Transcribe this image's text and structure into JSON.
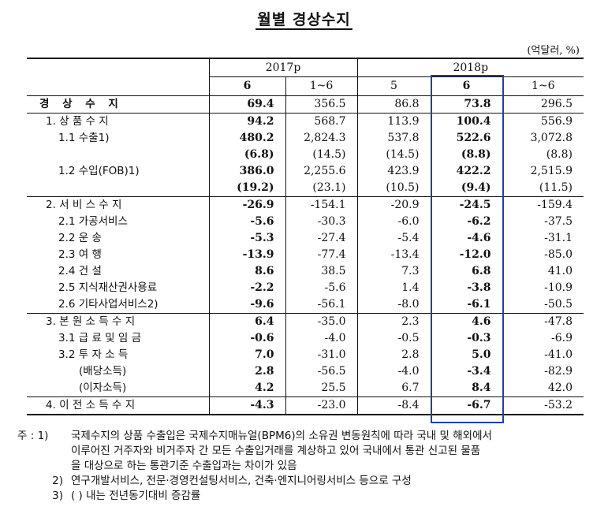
{
  "title": "월별 경상수지",
  "unit": "(억달러, %)",
  "header": {
    "year_2017": "2017p",
    "year_2018": "2018p",
    "cols": [
      "6",
      "1~6",
      "5",
      "6",
      "1~6"
    ]
  },
  "rows": [
    {
      "label": "경 상 수 지",
      "values": [
        "69.4",
        "356.5",
        "86.8",
        "73.8",
        "296.5"
      ],
      "bold": [
        true,
        false,
        false,
        true,
        false
      ]
    },
    {
      "label": "1. 상 품 수 지",
      "values": [
        "94.2",
        "568.7",
        "113.9",
        "100.4",
        "556.9"
      ],
      "bold": [
        true,
        false,
        false,
        true,
        false
      ]
    },
    {
      "label": "1.1 수출1)",
      "values": [
        "480.2",
        "2,824.3",
        "537.8",
        "522.6",
        "3,072.8"
      ],
      "bold": [
        true,
        false,
        false,
        true,
        false
      ]
    },
    {
      "label": "",
      "values": [
        "(6.8)",
        "(14.5)",
        "(14.5)",
        "(8.8)",
        "(8.8)"
      ],
      "bold": [
        true,
        false,
        false,
        true,
        false
      ]
    },
    {
      "label": "1.2 수입(FOB)1)",
      "values": [
        "386.0",
        "2,255.6",
        "423.9",
        "422.2",
        "2,515.9"
      ],
      "bold": [
        true,
        false,
        false,
        true,
        false
      ]
    },
    {
      "label": "",
      "values": [
        "(19.2)",
        "(23.1)",
        "(10.5)",
        "(9.4)",
        "(11.5)"
      ],
      "bold": [
        true,
        false,
        false,
        true,
        false
      ]
    },
    {
      "label": "2. 서 비 스 수 지",
      "values": [
        "-26.9",
        "-154.1",
        "-20.9",
        "-24.5",
        "-159.4"
      ],
      "bold": [
        true,
        false,
        false,
        true,
        false
      ]
    },
    {
      "label": "2.1 가공서비스",
      "values": [
        "-5.6",
        "-30.3",
        "-6.0",
        "-6.2",
        "-37.5"
      ],
      "bold": [
        true,
        false,
        false,
        true,
        false
      ]
    },
    {
      "label": "2.2 운        송",
      "values": [
        "-5.3",
        "-27.4",
        "-5.4",
        "-4.6",
        "-31.1"
      ],
      "bold": [
        true,
        false,
        false,
        true,
        false
      ]
    },
    {
      "label": "2.3 여        행",
      "values": [
        "-13.9",
        "-77.4",
        "-13.4",
        "-12.0",
        "-85.0"
      ],
      "bold": [
        true,
        false,
        false,
        true,
        false
      ]
    },
    {
      "label": "2.4 건        설",
      "values": [
        "8.6",
        "38.5",
        "7.3",
        "6.8",
        "41.0"
      ],
      "bold": [
        true,
        false,
        false,
        true,
        false
      ]
    },
    {
      "label": "2.5 지식재산권사용료",
      "values": [
        "-2.2",
        "-5.6",
        "1.4",
        "-3.8",
        "-10.9"
      ],
      "bold": [
        true,
        false,
        false,
        true,
        false
      ]
    },
    {
      "label": "2.6 기타사업서비스2)",
      "values": [
        "-9.6",
        "-56.1",
        "-8.0",
        "-6.1",
        "-50.5"
      ],
      "bold": [
        true,
        false,
        false,
        true,
        false
      ]
    },
    {
      "label": "3. 본 원 소 득 수 지",
      "values": [
        "6.4",
        "-35.0",
        "2.3",
        "4.6",
        "-47.8"
      ],
      "bold": [
        true,
        false,
        false,
        true,
        false
      ]
    },
    {
      "label": "3.1 급 료 및 임 금",
      "values": [
        "-0.6",
        "-4.0",
        "-0.5",
        "-0.3",
        "-6.9"
      ],
      "bold": [
        true,
        false,
        false,
        true,
        false
      ]
    },
    {
      "label": "3.2 투  자  소  득",
      "values": [
        "7.0",
        "-31.0",
        "2.8",
        "5.0",
        "-41.0"
      ],
      "bold": [
        true,
        false,
        false,
        true,
        false
      ]
    },
    {
      "label": "(배당소득)",
      "values": [
        "2.8",
        "-56.5",
        "-4.0",
        "-3.4",
        "-82.9"
      ],
      "bold": [
        true,
        false,
        false,
        true,
        false
      ]
    },
    {
      "label": "(이자소득)",
      "values": [
        "4.2",
        "25.5",
        "6.7",
        "8.4",
        "42.0"
      ],
      "bold": [
        true,
        false,
        false,
        true,
        false
      ]
    },
    {
      "label": "4. 이 전 소 득 수 지",
      "values": [
        "-4.3",
        "-23.0",
        "-8.4",
        "-6.7",
        "-53.2"
      ],
      "bold": [
        true,
        false,
        false,
        true,
        false
      ]
    }
  ],
  "notes": {
    "prefix": "주 :",
    "n1_key": "1)",
    "n1_line1": "국제수지의 상품 수출입은 국제수지매뉴얼(BPM6)의 소유권 변동원칙에 따라 국내 및 해외에서",
    "n1_line2": "이루어진 거주자와 비거주자 간 모든 수출입거래를 계상하고 있어 국내에서 통관 신고된 물품",
    "n1_line3": "을 대상으로 하는 통관기준 수출입과는 차이가 있음",
    "n2_key": "2)",
    "n2_text": "연구개발서비스, 전문·경영컨설팅서비스, 건축·엔지니어링서비스 등으로 구성",
    "n3_key": "3)",
    "n3_text": "(  ) 내는 전년동기대비 증감률"
  }
}
